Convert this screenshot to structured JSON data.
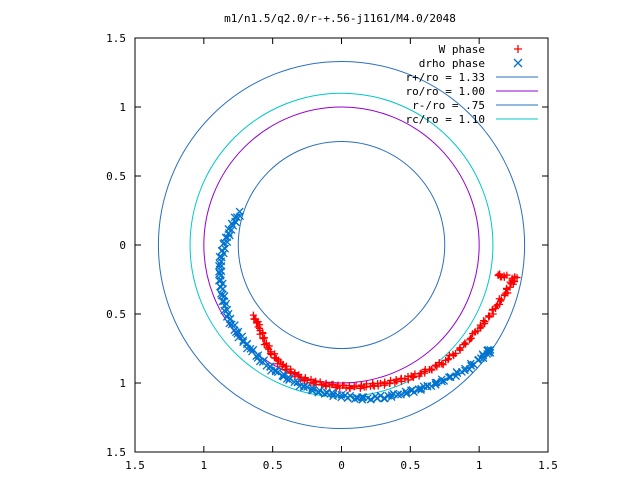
{
  "chart_data": {
    "type": "scatter",
    "title": "m1/n1.5/q2.0/r-+.56-j1161/M4.0/2048",
    "xlabel": "",
    "ylabel": "",
    "xlim": [
      -1.5,
      1.5
    ],
    "ylim": [
      -1.5,
      1.5
    ],
    "x_ticks": [
      -1.5,
      -1,
      -0.5,
      0,
      0.5,
      1,
      1.5
    ],
    "y_ticks": [
      -1.5,
      -1,
      -0.5,
      0,
      0.5,
      1,
      1.5
    ],
    "x_tick_labels": [
      "1.5",
      "1",
      "0.5",
      "0",
      "0.5",
      "1",
      "1.5"
    ],
    "y_tick_labels": [
      "1.5",
      "1",
      "0.5",
      "0",
      "0.5",
      "1",
      "1.5"
    ],
    "grid": false,
    "legend_position": "top-right",
    "series": [
      {
        "name": "W phase",
        "marker": "plus",
        "color": "#ff0000",
        "points": [
          [
            -0.64,
            -0.52
          ],
          [
            -0.61,
            -0.57
          ],
          [
            -0.58,
            -0.64
          ],
          [
            -0.55,
            -0.71
          ],
          [
            -0.51,
            -0.78
          ],
          [
            -0.46,
            -0.84
          ],
          [
            -0.41,
            -0.89
          ],
          [
            -0.35,
            -0.93
          ],
          [
            -0.28,
            -0.97
          ],
          [
            -0.21,
            -0.99
          ],
          [
            -0.14,
            -1.01
          ],
          [
            -0.06,
            -1.02
          ],
          [
            0.02,
            -1.03
          ],
          [
            0.1,
            -1.03
          ],
          [
            0.18,
            -1.02
          ],
          [
            0.26,
            -1.01
          ],
          [
            0.34,
            -1.0
          ],
          [
            0.42,
            -0.98
          ],
          [
            0.5,
            -0.96
          ],
          [
            0.58,
            -0.93
          ],
          [
            0.66,
            -0.89
          ],
          [
            0.74,
            -0.85
          ],
          [
            0.82,
            -0.79
          ],
          [
            0.9,
            -0.72
          ],
          [
            0.97,
            -0.64
          ],
          [
            1.03,
            -0.57
          ],
          [
            1.09,
            -0.49
          ],
          [
            1.14,
            -0.42
          ],
          [
            1.19,
            -0.35
          ],
          [
            1.23,
            -0.28
          ],
          [
            1.27,
            -0.24
          ],
          [
            1.15,
            -0.22
          ]
        ]
      },
      {
        "name": "drho phase",
        "marker": "cross",
        "color": "#0073cf",
        "points": [
          [
            -0.74,
            0.23
          ],
          [
            -0.79,
            0.15
          ],
          [
            -0.83,
            0.06
          ],
          [
            -0.86,
            -0.03
          ],
          [
            -0.88,
            -0.13
          ],
          [
            -0.88,
            -0.23
          ],
          [
            -0.87,
            -0.33
          ],
          [
            -0.85,
            -0.43
          ],
          [
            -0.82,
            -0.53
          ],
          [
            -0.77,
            -0.62
          ],
          [
            -0.71,
            -0.7
          ],
          [
            -0.64,
            -0.78
          ],
          [
            -0.56,
            -0.86
          ],
          [
            -0.47,
            -0.92
          ],
          [
            -0.38,
            -0.97
          ],
          [
            -0.28,
            -1.02
          ],
          [
            -0.18,
            -1.06
          ],
          [
            -0.08,
            -1.08
          ],
          [
            0.02,
            -1.1
          ],
          [
            0.12,
            -1.11
          ],
          [
            0.22,
            -1.11
          ],
          [
            0.32,
            -1.1
          ],
          [
            0.42,
            -1.08
          ],
          [
            0.52,
            -1.06
          ],
          [
            0.62,
            -1.03
          ],
          [
            0.72,
            -0.99
          ],
          [
            0.82,
            -0.94
          ],
          [
            0.92,
            -0.89
          ],
          [
            1.01,
            -0.82
          ],
          [
            1.07,
            -0.77
          ]
        ]
      }
    ],
    "circles": [
      {
        "name": "r+/ro = 1.33",
        "r": 1.33,
        "color": "#2a6fc0"
      },
      {
        "name": "ro/ro = 1.00",
        "r": 1.0,
        "color": "#9400d3"
      },
      {
        "name": "r-/ro = .75",
        "r": 0.75,
        "color": "#2a6fc0"
      },
      {
        "name": "rc/ro = 1.10",
        "r": 1.1,
        "color": "#00c8c8"
      }
    ]
  }
}
